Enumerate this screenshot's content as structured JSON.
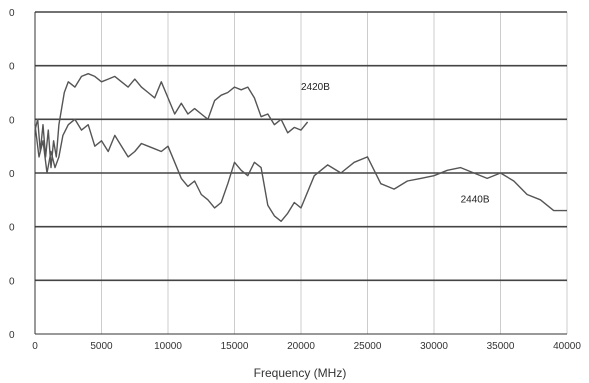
{
  "chart_data": {
    "type": "line",
    "title": "",
    "xlabel": "Frequency (MHz)",
    "ylabel": "",
    "xlim": [
      0,
      40000
    ],
    "ylim": [
      0,
      6
    ],
    "x_ticks": [
      0,
      5000,
      10000,
      15000,
      20000,
      25000,
      30000,
      35000,
      40000
    ],
    "x_tick_labels": [
      "0",
      "5000",
      "10000",
      "15000",
      "20000",
      "25000",
      "30000",
      "35000",
      "40000"
    ],
    "y_ticks": [
      0,
      1,
      2,
      3,
      4,
      5,
      6
    ],
    "y_tick_labels": [
      "0",
      "0",
      "0",
      "0",
      "0",
      "0",
      "0"
    ],
    "grid": "both",
    "line_color": "#555555",
    "grid_color": "#cccccc",
    "hline_color": "#444444",
    "series": [
      {
        "name": "2420B",
        "label_at": [
          20000,
          4.55
        ],
        "x": [
          0,
          200,
          400,
          600,
          800,
          1000,
          1200,
          1400,
          1600,
          1800,
          2000,
          2200,
          2500,
          3000,
          3500,
          4000,
          4500,
          5000,
          5500,
          6000,
          6500,
          7000,
          7500,
          8000,
          8500,
          9000,
          9500,
          10000,
          10500,
          11000,
          11500,
          12000,
          12500,
          13000,
          13500,
          14000,
          14500,
          15000,
          15500,
          16000,
          16500,
          17000,
          17500,
          18000,
          18500,
          19000,
          19500,
          20000,
          20500
        ],
        "y": [
          3.8,
          4.0,
          3.4,
          3.9,
          3.3,
          3.8,
          3.1,
          3.6,
          3.3,
          3.9,
          4.2,
          4.5,
          4.7,
          4.6,
          4.8,
          4.85,
          4.8,
          4.7,
          4.75,
          4.8,
          4.7,
          4.6,
          4.75,
          4.6,
          4.5,
          4.4,
          4.7,
          4.4,
          4.1,
          4.3,
          4.1,
          4.2,
          4.1,
          4.0,
          4.35,
          4.45,
          4.5,
          4.6,
          4.55,
          4.6,
          4.4,
          4.05,
          4.1,
          3.9,
          4.0,
          3.75,
          3.85,
          3.8,
          3.95
        ]
      },
      {
        "name": "2440B",
        "label_at": [
          32000,
          2.45
        ],
        "x": [
          0,
          300,
          600,
          900,
          1200,
          1500,
          1800,
          2100,
          2500,
          3000,
          3500,
          4000,
          4500,
          5000,
          5500,
          6000,
          6500,
          7000,
          7500,
          8000,
          8500,
          9000,
          9500,
          10000,
          10500,
          11000,
          11500,
          12000,
          12500,
          13000,
          13500,
          14000,
          14500,
          15000,
          15500,
          16000,
          16500,
          17000,
          17500,
          18000,
          18500,
          19000,
          19500,
          20000,
          21000,
          22000,
          23000,
          24000,
          25000,
          26000,
          27000,
          28000,
          29000,
          30000,
          31000,
          32000,
          33000,
          34000,
          35000,
          36000,
          37000,
          38000,
          39000,
          40000
        ],
        "y": [
          3.9,
          3.3,
          3.6,
          3.0,
          3.4,
          3.1,
          3.3,
          3.7,
          3.9,
          4.0,
          3.8,
          3.9,
          3.5,
          3.6,
          3.4,
          3.7,
          3.5,
          3.3,
          3.4,
          3.55,
          3.5,
          3.45,
          3.4,
          3.5,
          3.2,
          2.9,
          2.75,
          2.85,
          2.6,
          2.5,
          2.35,
          2.45,
          2.8,
          3.2,
          3.05,
          2.95,
          3.2,
          3.1,
          2.4,
          2.2,
          2.1,
          2.25,
          2.45,
          2.35,
          2.95,
          3.15,
          3.0,
          3.2,
          3.3,
          2.8,
          2.7,
          2.85,
          2.9,
          2.95,
          3.05,
          3.1,
          3.0,
          2.9,
          3.0,
          2.85,
          2.6,
          2.5,
          2.3,
          2.3
        ]
      }
    ]
  }
}
